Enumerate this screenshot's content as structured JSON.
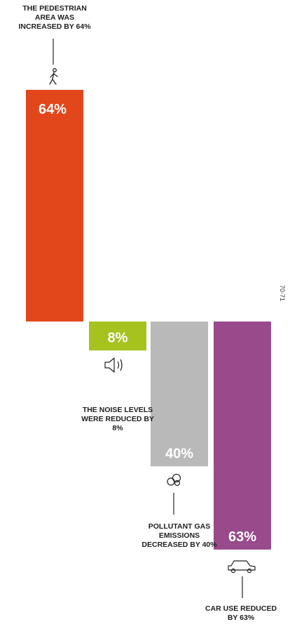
{
  "chart_data": {
    "type": "bar",
    "title": "",
    "categories": [
      "Pedestrian area",
      "Noise levels",
      "Pollutant gas emissions",
      "Car use"
    ],
    "series": [
      {
        "values": [
          64,
          -8,
          -40,
          -63
        ],
        "colors": [
          "#e2461b",
          "#a6c21f",
          "#b9b9b9",
          "#984a8a"
        ]
      }
    ],
    "value_labels": [
      "64%",
      "8%",
      "40%",
      "63%"
    ],
    "annotations": [
      "THE PEDESTRIAN AREA WAS INCREASED BY 64%",
      "THE NOISE LEVELS WERE REDUCED BY 8%",
      "POLLUTANT GAS EMISSIONS DECREASED BY 40%",
      "CAR USE REDUCED BY 63%"
    ],
    "icons": [
      "pedestrian-icon",
      "speaker-icon",
      "gas-cloud-icon",
      "car-icon"
    ],
    "grid": false,
    "legend": "none"
  },
  "side_code": "70-71"
}
